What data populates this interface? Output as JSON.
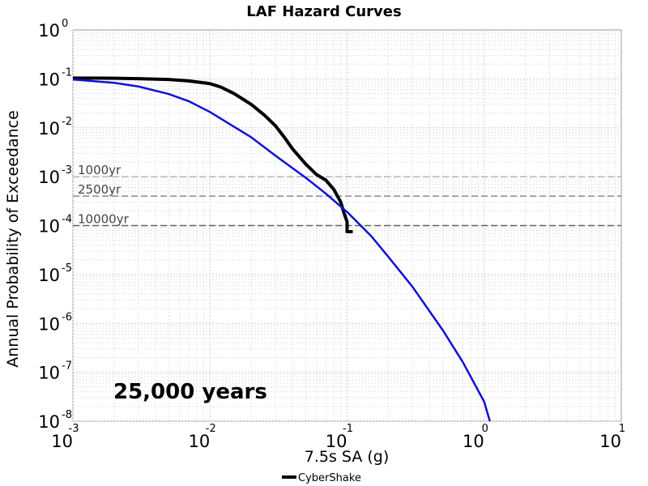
{
  "chart_data": {
    "type": "line",
    "title": "LAF Hazard Curves",
    "xlabel": "7.5s SA (g)",
    "ylabel": "Annual Probability of Exceedance",
    "x_scale": "log",
    "y_scale": "log",
    "xlim": [
      0.001,
      10
    ],
    "ylim": [
      1e-08,
      1
    ],
    "grid": true,
    "x_ticks": [
      {
        "base": "10",
        "exp": "-3",
        "value": 0.001
      },
      {
        "base": "10",
        "exp": "-2",
        "value": 0.01
      },
      {
        "base": "10",
        "exp": "-1",
        "value": 0.1
      },
      {
        "base": "10",
        "exp": "0",
        "value": 1
      },
      {
        "base": "10",
        "exp": "1",
        "value": 10
      }
    ],
    "y_ticks": [
      {
        "base": "10",
        "exp": "0",
        "value": 1
      },
      {
        "base": "10",
        "exp": "-1",
        "value": 0.1
      },
      {
        "base": "10",
        "exp": "-2",
        "value": 0.01
      },
      {
        "base": "10",
        "exp": "-3",
        "value": 0.001
      },
      {
        "base": "10",
        "exp": "-4",
        "value": 0.0001
      },
      {
        "base": "10",
        "exp": "-5",
        "value": 1e-05
      },
      {
        "base": "10",
        "exp": "-6",
        "value": 1e-06
      },
      {
        "base": "10",
        "exp": "-7",
        "value": 1e-07
      },
      {
        "base": "10",
        "exp": "-8",
        "value": 1e-08
      }
    ],
    "reference_lines": [
      {
        "label": "1000yr",
        "y": 0.001
      },
      {
        "label": "2500yr",
        "y": 0.0004
      },
      {
        "label": "10000yr",
        "y": 0.0001
      }
    ],
    "annotation": "25,000 years",
    "legend": {
      "placement": "bottom-center",
      "entries": [
        "CyberShake"
      ]
    },
    "series": [
      {
        "name": "CyberShake",
        "color": "#000000",
        "points": [
          [
            0.001,
            0.104
          ],
          [
            0.002,
            0.103
          ],
          [
            0.003,
            0.101
          ],
          [
            0.005,
            0.097
          ],
          [
            0.007,
            0.091
          ],
          [
            0.01,
            0.08
          ],
          [
            0.012,
            0.068
          ],
          [
            0.015,
            0.05
          ],
          [
            0.02,
            0.03
          ],
          [
            0.025,
            0.018
          ],
          [
            0.03,
            0.011
          ],
          [
            0.035,
            0.0063
          ],
          [
            0.04,
            0.0037
          ],
          [
            0.05,
            0.0018
          ],
          [
            0.06,
            0.0011
          ],
          [
            0.07,
            0.00085
          ],
          [
            0.08,
            0.00055
          ],
          [
            0.09,
            0.0003
          ],
          [
            0.095,
            0.00018
          ],
          [
            0.1,
            0.00012
          ],
          [
            0.1,
            7.5e-05
          ],
          [
            0.11,
            7.5e-05
          ]
        ]
      },
      {
        "color": "#1010d8",
        "points": [
          [
            0.001,
            0.097
          ],
          [
            0.002,
            0.083
          ],
          [
            0.003,
            0.07
          ],
          [
            0.005,
            0.049
          ],
          [
            0.007,
            0.035
          ],
          [
            0.01,
            0.021
          ],
          [
            0.02,
            0.0064
          ],
          [
            0.03,
            0.0027
          ],
          [
            0.05,
            0.00095
          ],
          [
            0.07,
            0.00045
          ],
          [
            0.1,
            0.00019
          ],
          [
            0.15,
            6.1e-05
          ],
          [
            0.2,
            2.3e-05
          ],
          [
            0.3,
            5.6e-06
          ],
          [
            0.5,
            7.2e-07
          ],
          [
            0.7,
            1.6e-07
          ],
          [
            1.0,
            2.5e-08
          ],
          [
            1.1,
            1e-08
          ]
        ]
      }
    ]
  }
}
